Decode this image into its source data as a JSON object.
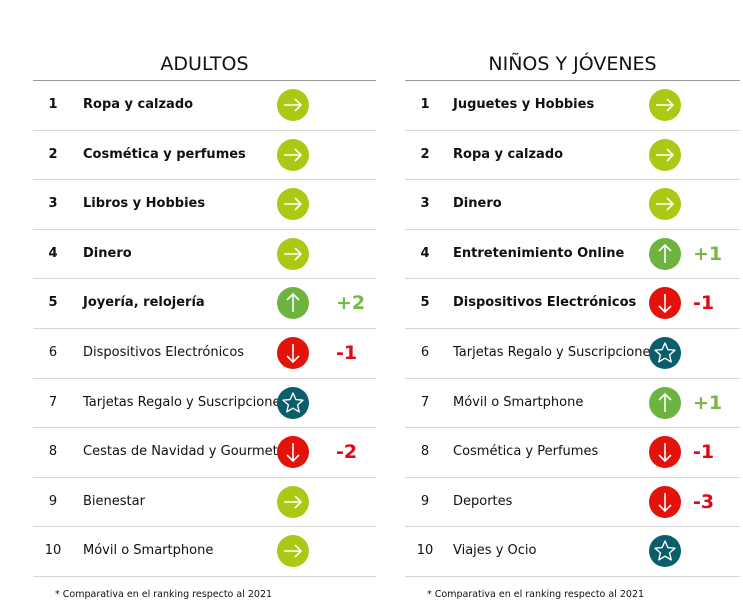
{
  "panels": [
    {
      "title": "ADULTOS",
      "rows": [
        {
          "rank": 1,
          "label": "Ropa y calzado"
        },
        {
          "rank": 2,
          "label": "Cosmética y perfumes"
        },
        {
          "rank": 3,
          "label": "Libros y Hobbies"
        },
        {
          "rank": 4,
          "label": "Dinero"
        },
        {
          "rank": 5,
          "label": "Joyería, relojería",
          "change": "+2"
        },
        {
          "rank": 6,
          "label": "Dispositivos Electrónicos",
          "change": "-1"
        },
        {
          "rank": 7,
          "label": "Tarjetas Regalo y Suscripciones"
        },
        {
          "rank": 8,
          "label": "Cestas de Navidad y Gourmet",
          "change": "-2"
        },
        {
          "rank": 9,
          "label": "Bienestar"
        },
        {
          "rank": 10,
          "label": "Móvil o Smartphone"
        }
      ],
      "footnote": "* Comparativa en el ranking respecto al 2021"
    },
    {
      "title": "NIÑOS Y JÓVENES",
      "rows": [
        {
          "rank": 1,
          "label": "Juguetes y Hobbies"
        },
        {
          "rank": 2,
          "label": "Ropa y calzado"
        },
        {
          "rank": 3,
          "label": "Dinero"
        },
        {
          "rank": 4,
          "label": "Entretenimiento Online",
          "change": "+1"
        },
        {
          "rank": 5,
          "label": "Dispositivos Electrónicos",
          "change": "-1"
        },
        {
          "rank": 6,
          "label": "Tarjetas Regalo y Suscripciones"
        },
        {
          "rank": 7,
          "label": "Móvil o Smartphone",
          "change": "+1"
        },
        {
          "rank": 8,
          "label": "Cosmética y Perfumes",
          "change": "-1"
        },
        {
          "rank": 9,
          "label": "Deportes",
          "change": "-3"
        },
        {
          "rank": 10,
          "label": "Viajes y Ocio"
        }
      ],
      "footnote": "* Comparativa en el ranking respecto al 2021"
    }
  ]
}
